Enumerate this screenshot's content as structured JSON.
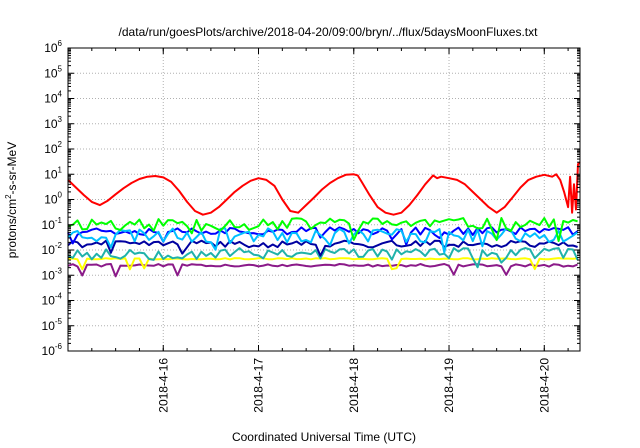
{
  "chart_data": {
    "type": "line",
    "title": "/data/run/goesPlots/archive/2018-04-20/09:00/bryn/../flux/5daysMoonFluxes.txt",
    "xlabel": "Coordinated Universal Time (UTC)",
    "ylabel": {
      "pre": "protons/cm",
      "sup": "2",
      "post": "-s-sr-MeV"
    },
    "y_scale": "log",
    "ylim": [
      1e-06,
      1000000.0
    ],
    "y_ticks": [
      {
        "value": 1e-06,
        "base": "10",
        "exp": "-6"
      },
      {
        "value": 1e-05,
        "base": "10",
        "exp": "-5"
      },
      {
        "value": 0.0001,
        "base": "10",
        "exp": "-4"
      },
      {
        "value": 0.001,
        "base": "10",
        "exp": "-3"
      },
      {
        "value": 0.01,
        "base": "10",
        "exp": "-2"
      },
      {
        "value": 0.1,
        "base": "10",
        "exp": "-1"
      },
      {
        "value": 1.0,
        "base": "10",
        "exp": "0"
      },
      {
        "value": 10.0,
        "base": "10",
        "exp": "1"
      },
      {
        "value": 100.0,
        "base": "10",
        "exp": "2"
      },
      {
        "value": 1000.0,
        "base": "10",
        "exp": "3"
      },
      {
        "value": 10000.0,
        "base": "10",
        "exp": "4"
      },
      {
        "value": 100000.0,
        "base": "10",
        "exp": "5"
      },
      {
        "value": 1000000.0,
        "base": "10",
        "exp": "6"
      }
    ],
    "xlim": [
      "2018-04-15 00:00",
      "2018-04-20 09:00"
    ],
    "x_ticks": [
      {
        "value": "2018-04-16 00:00",
        "label": "2018-4-16"
      },
      {
        "value": "2018-04-17 00:00",
        "label": "2018-4-17"
      },
      {
        "value": "2018-04-18 00:00",
        "label": "2018-4-18"
      },
      {
        "value": "2018-04-19 00:00",
        "label": "2018-4-19"
      },
      {
        "value": "2018-04-20 00:00",
        "label": "2018-4-20"
      }
    ],
    "grid": true,
    "series": [
      {
        "color": "#ff0000",
        "values": [
          [
            "2018-04-15 00:00",
            6
          ],
          [
            "2018-04-15 02:00",
            3
          ],
          [
            "2018-04-15 04:00",
            1.5
          ],
          [
            "2018-04-15 06:00",
            0.8
          ],
          [
            "2018-04-15 08:00",
            0.6
          ],
          [
            "2018-04-15 10:00",
            0.9
          ],
          [
            "2018-04-15 12:00",
            1.6
          ],
          [
            "2018-04-15 14:00",
            2.8
          ],
          [
            "2018-04-15 16:00",
            4.5
          ],
          [
            "2018-04-15 18:00",
            6.5
          ],
          [
            "2018-04-15 20:00",
            8
          ],
          [
            "2018-04-15 22:00",
            8.5
          ],
          [
            "2018-04-16 00:00",
            7.5
          ],
          [
            "2018-04-16 02:00",
            5
          ],
          [
            "2018-04-16 04:00",
            2.2
          ],
          [
            "2018-04-16 06:00",
            0.8
          ],
          [
            "2018-04-16 08:00",
            0.35
          ],
          [
            "2018-04-16 10:00",
            0.25
          ],
          [
            "2018-04-16 12:00",
            0.3
          ],
          [
            "2018-04-16 14:00",
            0.5
          ],
          [
            "2018-04-16 16:00",
            1
          ],
          [
            "2018-04-16 18:00",
            2
          ],
          [
            "2018-04-16 20:00",
            3.5
          ],
          [
            "2018-04-16 22:00",
            5.5
          ],
          [
            "2018-04-17 00:00",
            7
          ],
          [
            "2018-04-17 02:00",
            6
          ],
          [
            "2018-04-17 04:00",
            3.5
          ],
          [
            "2018-04-17 06:00",
            1
          ],
          [
            "2018-04-17 08:00",
            0.35
          ],
          [
            "2018-04-17 10:00",
            0.3
          ],
          [
            "2018-04-17 12:00",
            0.6
          ],
          [
            "2018-04-17 14:00",
            1.2
          ],
          [
            "2018-04-17 16:00",
            2.5
          ],
          [
            "2018-04-17 18:00",
            4.5
          ],
          [
            "2018-04-17 20:00",
            7
          ],
          [
            "2018-04-17 22:00",
            9.5
          ],
          [
            "2018-04-18 00:00",
            10
          ],
          [
            "2018-04-18 01:00",
            9
          ],
          [
            "2018-04-18 02:00",
            5
          ],
          [
            "2018-04-18 04:00",
            1.5
          ],
          [
            "2018-04-18 06:00",
            0.5
          ],
          [
            "2018-04-18 08:00",
            0.3
          ],
          [
            "2018-04-18 10:00",
            0.25
          ],
          [
            "2018-04-18 12:00",
            0.3
          ],
          [
            "2018-04-18 14:00",
            0.6
          ],
          [
            "2018-04-18 16:00",
            1.5
          ],
          [
            "2018-04-18 18:00",
            4
          ],
          [
            "2018-04-18 20:00",
            9
          ],
          [
            "2018-04-18 21:00",
            7
          ],
          [
            "2018-04-18 22:00",
            8
          ],
          [
            "2018-04-19 00:00",
            7
          ],
          [
            "2018-04-19 02:00",
            6
          ],
          [
            "2018-04-19 04:00",
            4
          ],
          [
            "2018-04-19 06:00",
            2
          ],
          [
            "2018-04-19 08:00",
            1
          ],
          [
            "2018-04-19 10:00",
            0.5
          ],
          [
            "2018-04-19 12:00",
            0.3
          ],
          [
            "2018-04-19 14:00",
            0.5
          ],
          [
            "2018-04-19 16:00",
            1.2
          ],
          [
            "2018-04-19 18:00",
            3
          ],
          [
            "2018-04-19 20:00",
            6
          ],
          [
            "2018-04-19 22:00",
            8
          ],
          [
            "2018-04-20 00:00",
            9.5
          ],
          [
            "2018-04-20 02:00",
            8
          ],
          [
            "2018-04-20 03:00",
            10
          ],
          [
            "2018-04-20 04:00",
            6
          ],
          [
            "2018-04-20 05:00",
            2
          ],
          [
            "2018-04-20 06:00",
            0.5
          ],
          [
            "2018-04-20 06:30",
            8
          ],
          [
            "2018-04-20 07:00",
            0.3
          ],
          [
            "2018-04-20 07:30",
            4
          ],
          [
            "2018-04-20 08:00",
            0.4
          ],
          [
            "2018-04-20 08:30",
            25
          ],
          [
            "2018-04-20 09:00",
            30
          ]
        ]
      },
      {
        "color": "#00ff00",
        "noisy": true,
        "base": 0.12,
        "amp": 0.55,
        "seed": 11,
        "values": []
      },
      {
        "color": "#00bfff",
        "noisy": true,
        "base": 0.045,
        "amp": 0.6,
        "seed": 23,
        "values": []
      },
      {
        "color": "#0000ff",
        "noisy": true,
        "base": 0.06,
        "amp": 0.35,
        "seed": 37,
        "values": []
      },
      {
        "color": "#0000a0",
        "noisy": true,
        "base": 0.018,
        "amp": 0.3,
        "seed": 41,
        "values": []
      },
      {
        "color": "#20b2aa",
        "noisy": true,
        "base": 0.008,
        "amp": 0.5,
        "seed": 53,
        "values": []
      },
      {
        "color": "#ffff00",
        "noisy": true,
        "base": 0.0045,
        "amp": 0.06,
        "seed": 67,
        "values": []
      },
      {
        "color": "#8b1a89",
        "noisy": true,
        "base": 0.0025,
        "amp": 0.12,
        "seed": 79,
        "values": []
      }
    ]
  }
}
